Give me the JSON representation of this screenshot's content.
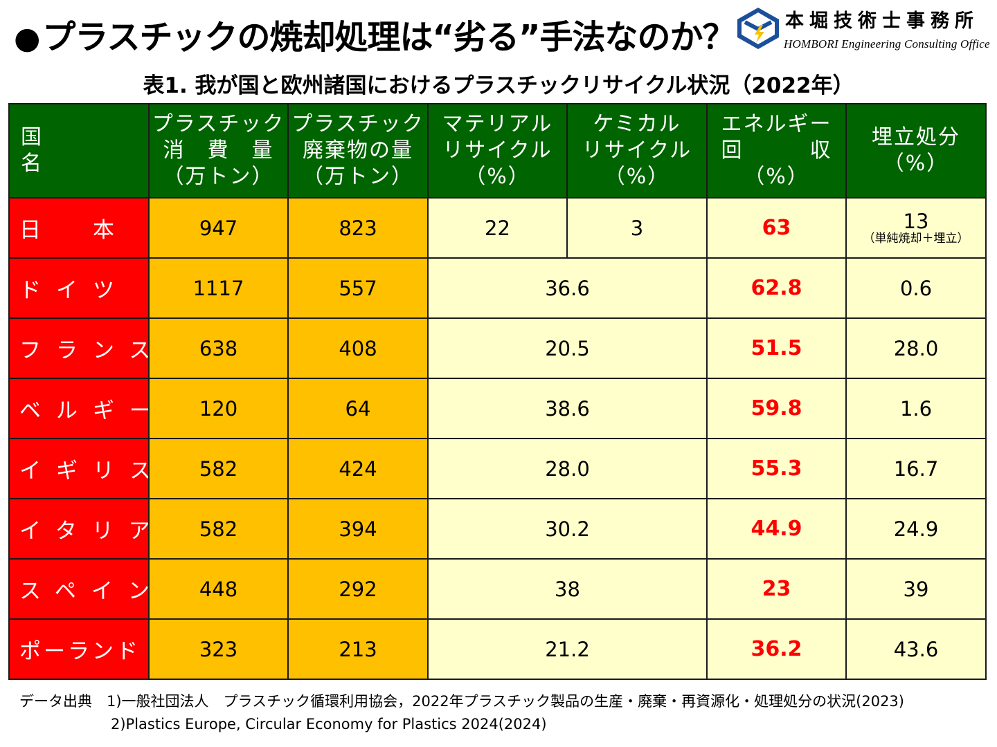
{
  "header": {
    "bullet": "●",
    "title": "プラスチックの焼却処理は“劣る”手法なのか？"
  },
  "logo": {
    "name_jp": "本堀技術士事務所",
    "name_en": "HOMBORI Engineering Consulting Office",
    "colors": {
      "blue": "#1b4f9c",
      "yellow": "#f4c400"
    }
  },
  "table_title": "表1. 我が国と欧州諸国におけるプラスチックリサイクル状況（2022年）",
  "columns": {
    "country_l": "国",
    "country_r": "名",
    "consumption_1": "プラスチック",
    "consumption_2": "消　費　量",
    "consumption_3": "（万トン）",
    "waste_1": "プラスチック",
    "waste_2": "廃棄物の量",
    "waste_3": "（万トン）",
    "material_1": "マテリアル",
    "material_2": "リサイクル",
    "material_3": "（%）",
    "chemical_1": "ケミカル",
    "chemical_2": "リサイクル",
    "chemical_3": "（%）",
    "energy_1": "エネルギー",
    "energy_2": "回　　　収",
    "energy_3": "（%）",
    "landfill_1": "埋立処分",
    "landfill_2": "（%）"
  },
  "rows": [
    {
      "country": "日　本",
      "consumption": "947",
      "waste": "823",
      "material": "22",
      "chemical": "3",
      "energy": "63",
      "landfill": "13",
      "landfill_note": "（単純焼却＋埋立）"
    },
    {
      "country": "ドイツ",
      "consumption": "1117",
      "waste": "557",
      "recycling": "36.6",
      "energy": "62.8",
      "landfill": "0.6"
    },
    {
      "country": "フランス",
      "consumption": "638",
      "waste": "408",
      "recycling": "20.5",
      "energy": "51.5",
      "landfill": "28.0"
    },
    {
      "country": "ベルギー",
      "consumption": "120",
      "waste": "64",
      "recycling": "38.6",
      "energy": "59.8",
      "landfill": "1.6"
    },
    {
      "country": "イギリス",
      "consumption": "582",
      "waste": "424",
      "recycling": "28.0",
      "energy": "55.3",
      "landfill": "16.7"
    },
    {
      "country": "イタリア",
      "consumption": "582",
      "waste": "394",
      "recycling": "30.2",
      "energy": "44.9",
      "landfill": "24.9"
    },
    {
      "country": "スペイン",
      "consumption": "448",
      "waste": "292",
      "recycling": "38",
      "energy": "23",
      "landfill": "39"
    },
    {
      "country": "ポーランド",
      "consumption": "323",
      "waste": "213",
      "recycling": "21.2",
      "energy": "36.2",
      "landfill": "43.6"
    }
  ],
  "source": {
    "line1": "データ出典　1)一般社団法人　プラスチック循環利用協会，2022年プラスチック製品の生産・廃棄・再資源化・処理処分の状況(2023)",
    "line2": "2)Plastics Europe, Circular Economy for Plastics 2024(2024)"
  }
}
